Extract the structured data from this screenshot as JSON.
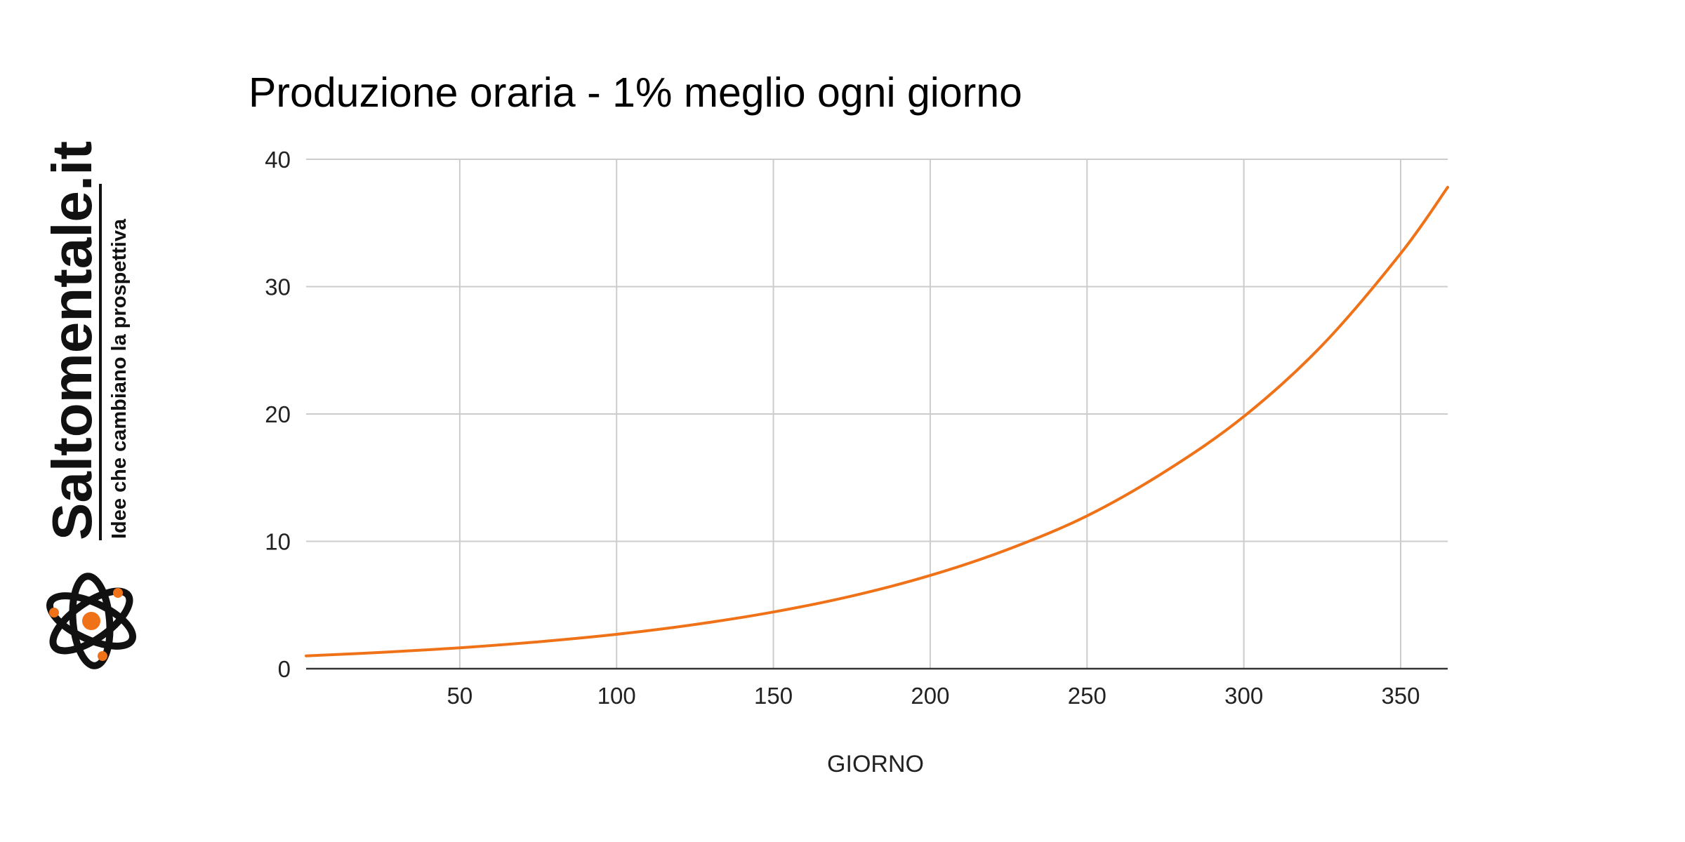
{
  "brand": {
    "name": "Saltomentale",
    "domain_suffix": ".it",
    "tagline": "Idee che cambiano la prospettiva",
    "logo_icon": "atom-icon"
  },
  "colors": {
    "accent": "#F07218",
    "text": "#111111",
    "gridline": "#CCCCCC",
    "axis": "#333333"
  },
  "chart_data": {
    "type": "line",
    "title": "Produzione oraria - 1% meglio ogni giorno",
    "xlabel": "GIORNO",
    "ylabel": "",
    "xlim": [
      1,
      365
    ],
    "ylim": [
      0,
      40
    ],
    "x_ticks": [
      50,
      100,
      150,
      200,
      250,
      300,
      350
    ],
    "y_ticks": [
      0,
      10,
      20,
      30,
      40
    ],
    "grid": true,
    "legend": "none",
    "series": [
      {
        "color": "#F07218",
        "x": [
          1,
          25,
          50,
          75,
          100,
          125,
          150,
          175,
          200,
          225,
          250,
          275,
          300,
          325,
          350,
          365
        ],
        "y": [
          1.01,
          1.28,
          1.64,
          2.11,
          2.7,
          3.47,
          4.45,
          5.71,
          7.32,
          9.39,
          12.0,
          15.5,
          19.8,
          25.4,
          32.6,
          37.8
        ]
      }
    ]
  }
}
